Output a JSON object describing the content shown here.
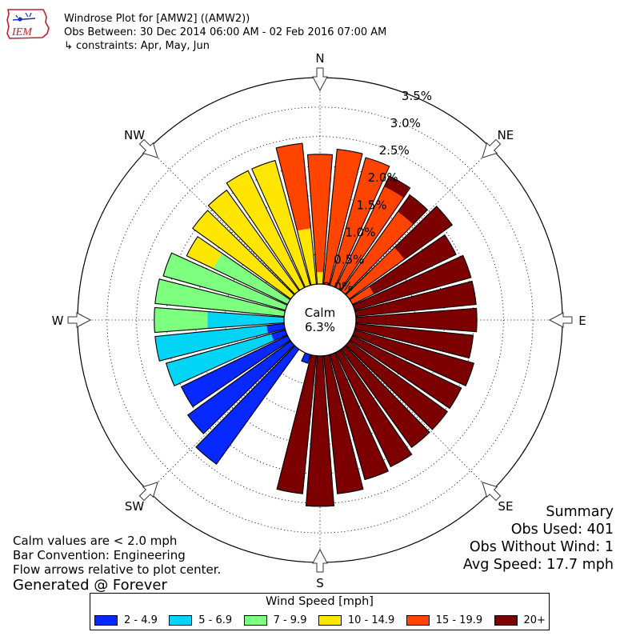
{
  "header": {
    "logo_text": "IEM"
  },
  "chart_data": {
    "type": "windrose",
    "title": "Windrose Plot for [AMW2] ((AMW2))",
    "subtitle": "Obs Between: 30 Dec 2014 06:00 AM - 02 Feb 2016 07:00 AM",
    "constraints": "↳ constraints: Apr, May, Jun",
    "calm_label": "Calm",
    "calm_value": "6.3%",
    "cardinal_labels": [
      "N",
      "NE",
      "E",
      "SE",
      "S",
      "SW",
      "W",
      "NW"
    ],
    "radial_ticks": [
      "0.0%",
      "0.5%",
      "1.0%",
      "1.5%",
      "2.0%",
      "2.5%",
      "3.0%",
      "3.5%"
    ],
    "r_max_percent": 3.5,
    "grid": true,
    "legend": {
      "title": "Wind Speed [mph]",
      "placement": "bottom-center",
      "bins": [
        "2 - 4.9",
        "5 - 6.9",
        "7 - 9.9",
        "10 - 14.9",
        "15 - 19.9",
        "20+"
      ],
      "colors": [
        "#0728ff",
        "#00d5f5",
        "#7dff7f",
        "#ffe600",
        "#ff4400",
        "#7d0000"
      ]
    },
    "directions_deg": [
      0,
      10,
      20,
      30,
      40,
      50,
      60,
      70,
      80,
      90,
      100,
      110,
      120,
      130,
      140,
      150,
      160,
      170,
      180,
      190,
      200,
      210,
      220,
      230,
      240,
      250,
      260,
      270,
      280,
      290,
      300,
      310,
      320,
      330,
      340,
      350
    ],
    "cumulative_percent": {
      "description": "Cumulative frequency (%) at the outer edge of each speed bin, per direction",
      "2 - 4.9": [
        0,
        0,
        0,
        0,
        0,
        0,
        0,
        0,
        0,
        0,
        0,
        0,
        0,
        0,
        0,
        0,
        0,
        0,
        0,
        0,
        0.15,
        0,
        2.4,
        2.15,
        2.0,
        0.25,
        0.3,
        0,
        0,
        0,
        0,
        0,
        0,
        0,
        0,
        0
      ],
      "5 - 6.9": [
        0,
        0,
        0,
        0,
        0,
        0,
        0,
        0,
        0,
        0,
        0,
        0,
        0,
        0,
        0,
        0,
        0,
        0,
        0,
        0,
        0.15,
        0,
        2.4,
        2.15,
        2.0,
        2.1,
        2.2,
        1.3,
        0,
        0,
        0,
        0,
        0,
        0,
        0,
        0
      ],
      "7 - 9.9": [
        0,
        0,
        0,
        0,
        0,
        0,
        0,
        0,
        0,
        0,
        0,
        0,
        0,
        0,
        0,
        0,
        0,
        0,
        0,
        0,
        0.15,
        0,
        2.4,
        2.15,
        2.0,
        2.1,
        2.2,
        2.2,
        2.2,
        2.15,
        1.4,
        0,
        0,
        0,
        0,
        0
      ],
      "10 - 14.9": [
        0.2,
        0,
        0,
        0,
        0,
        0,
        0,
        0,
        0,
        0,
        0,
        0,
        0,
        0,
        0,
        0,
        0,
        0,
        0,
        0,
        0.15,
        0,
        2.4,
        2.15,
        2.0,
        2.1,
        2.2,
        2.2,
        2.2,
        2.15,
        1.9,
        2.05,
        2.1,
        2.2,
        2.2,
        0.95
      ],
      "15 - 19.9": [
        2.2,
        2.3,
        2.25,
        1.9,
        1.65,
        1.15,
        0.4,
        0,
        0,
        0,
        0,
        0,
        0,
        0,
        0,
        0,
        0,
        0,
        0,
        0,
        0.15,
        0,
        2.4,
        2.15,
        2.0,
        2.1,
        2.2,
        2.2,
        2.2,
        2.15,
        1.9,
        2.05,
        2.1,
        2.2,
        2.2,
        2.4
      ],
      "20+": [
        2.2,
        2.3,
        2.25,
        2.1,
        2.0,
        2.15,
        1.95,
        2.05,
        2.05,
        2.05,
        2.0,
        2.1,
        2.05,
        2.05,
        2.05,
        2.15,
        2.2,
        2.35,
        2.55,
        2.35,
        0.15,
        0,
        2.4,
        2.15,
        2.0,
        2.1,
        2.2,
        2.2,
        2.2,
        2.15,
        1.9,
        2.05,
        2.1,
        2.2,
        2.2,
        2.4
      ]
    },
    "bar_convention": "Engineering"
  },
  "summary": {
    "title": "Summary",
    "obs_used": "Obs Used: 401",
    "obs_without_wind": "Obs Without Wind: 1",
    "avg_speed": "Avg Speed: 17.7 mph"
  },
  "notes": {
    "calm_note": "Calm values are < 2.0 mph",
    "bar_convention": "Bar Convention: Engineering",
    "flow_arrows": "Flow arrows relative to plot center.",
    "generated": "Generated @ Forever"
  }
}
